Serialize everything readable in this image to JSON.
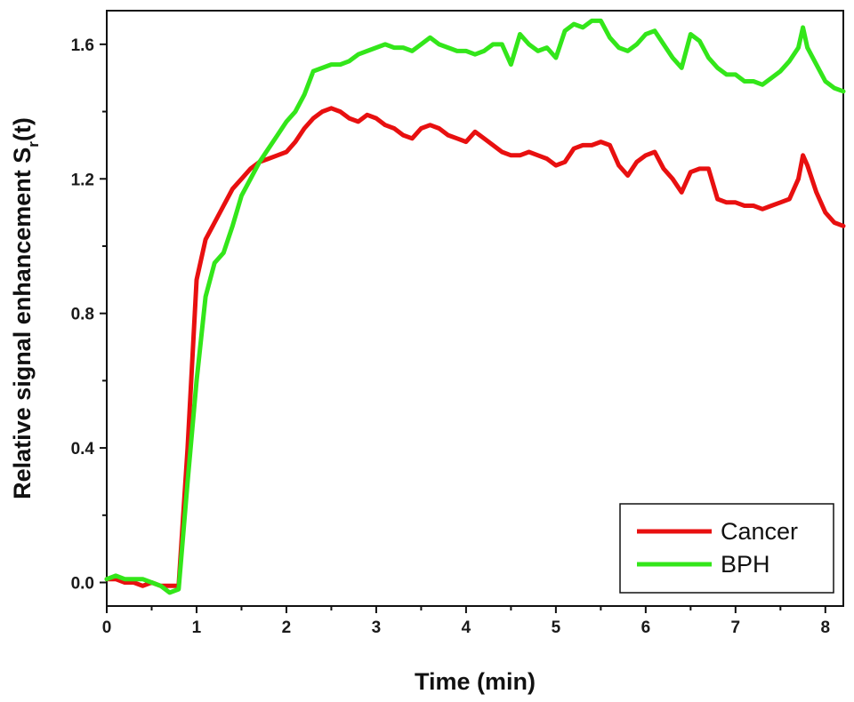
{
  "chart_data": {
    "type": "line",
    "xlabel": "Time (min)",
    "ylabel_main": "Relative signal enhancement S",
    "ylabel_sub": "r",
    "ylabel_tail": "(t)",
    "xlim": [
      0,
      8.2
    ],
    "ylim": [
      -0.07,
      1.7
    ],
    "xticks": [
      0,
      1,
      2,
      3,
      4,
      5,
      6,
      7,
      8
    ],
    "xtick_labels": [
      "0",
      "1",
      "2",
      "3",
      "4",
      "5",
      "6",
      "7",
      "8"
    ],
    "yticks": [
      0.0,
      0.4,
      0.8,
      1.2,
      1.6
    ],
    "ytick_labels": [
      "0.0",
      "0.4",
      "0.8",
      "1.2",
      "1.6"
    ],
    "grid": false,
    "legend_position": "bottom-right",
    "series": [
      {
        "name": "Cancer",
        "color": "#e81010",
        "x": [
          0.0,
          0.1,
          0.2,
          0.3,
          0.4,
          0.5,
          0.6,
          0.7,
          0.8,
          0.9,
          1.0,
          1.1,
          1.2,
          1.3,
          1.4,
          1.5,
          1.6,
          1.7,
          1.8,
          1.9,
          2.0,
          2.1,
          2.2,
          2.3,
          2.4,
          2.5,
          2.6,
          2.7,
          2.8,
          2.9,
          3.0,
          3.1,
          3.2,
          3.3,
          3.4,
          3.5,
          3.6,
          3.7,
          3.8,
          3.9,
          4.0,
          4.1,
          4.2,
          4.3,
          4.4,
          4.5,
          4.6,
          4.7,
          4.8,
          4.9,
          5.0,
          5.1,
          5.2,
          5.3,
          5.4,
          5.5,
          5.6,
          5.7,
          5.8,
          5.9,
          6.0,
          6.1,
          6.2,
          6.3,
          6.4,
          6.5,
          6.6,
          6.7,
          6.8,
          6.9,
          7.0,
          7.1,
          7.2,
          7.3,
          7.4,
          7.5,
          7.6,
          7.7,
          7.75,
          7.8,
          7.9,
          8.0,
          8.1,
          8.2
        ],
        "values": [
          0.01,
          0.01,
          0.0,
          0.0,
          -0.01,
          0.0,
          -0.01,
          -0.01,
          -0.01,
          0.4,
          0.9,
          1.02,
          1.07,
          1.12,
          1.17,
          1.2,
          1.23,
          1.25,
          1.26,
          1.27,
          1.28,
          1.31,
          1.35,
          1.38,
          1.4,
          1.41,
          1.4,
          1.38,
          1.37,
          1.39,
          1.38,
          1.36,
          1.35,
          1.33,
          1.32,
          1.35,
          1.36,
          1.35,
          1.33,
          1.32,
          1.31,
          1.34,
          1.32,
          1.3,
          1.28,
          1.27,
          1.27,
          1.28,
          1.27,
          1.26,
          1.24,
          1.25,
          1.29,
          1.3,
          1.3,
          1.31,
          1.3,
          1.24,
          1.21,
          1.25,
          1.27,
          1.28,
          1.23,
          1.2,
          1.16,
          1.22,
          1.23,
          1.23,
          1.14,
          1.13,
          1.13,
          1.12,
          1.12,
          1.11,
          1.12,
          1.13,
          1.14,
          1.2,
          1.27,
          1.24,
          1.16,
          1.1,
          1.07,
          1.06
        ]
      },
      {
        "name": "BPH",
        "color": "#33e61a",
        "x": [
          0.0,
          0.1,
          0.2,
          0.3,
          0.4,
          0.5,
          0.6,
          0.7,
          0.8,
          0.9,
          1.0,
          1.1,
          1.2,
          1.3,
          1.4,
          1.5,
          1.6,
          1.7,
          1.8,
          1.9,
          2.0,
          2.1,
          2.2,
          2.3,
          2.4,
          2.5,
          2.6,
          2.7,
          2.8,
          2.9,
          3.0,
          3.1,
          3.2,
          3.3,
          3.4,
          3.5,
          3.6,
          3.7,
          3.8,
          3.9,
          4.0,
          4.1,
          4.2,
          4.3,
          4.4,
          4.5,
          4.6,
          4.7,
          4.8,
          4.9,
          5.0,
          5.1,
          5.2,
          5.3,
          5.4,
          5.5,
          5.6,
          5.7,
          5.8,
          5.9,
          6.0,
          6.1,
          6.2,
          6.3,
          6.4,
          6.5,
          6.6,
          6.7,
          6.8,
          6.9,
          7.0,
          7.1,
          7.2,
          7.3,
          7.4,
          7.5,
          7.6,
          7.7,
          7.75,
          7.8,
          7.9,
          8.0,
          8.1,
          8.2
        ],
        "values": [
          0.01,
          0.02,
          0.01,
          0.01,
          0.01,
          0.0,
          -0.01,
          -0.03,
          -0.02,
          0.3,
          0.6,
          0.85,
          0.95,
          0.98,
          1.06,
          1.15,
          1.2,
          1.25,
          1.29,
          1.33,
          1.37,
          1.4,
          1.45,
          1.52,
          1.53,
          1.54,
          1.54,
          1.55,
          1.57,
          1.58,
          1.59,
          1.6,
          1.59,
          1.59,
          1.58,
          1.6,
          1.62,
          1.6,
          1.59,
          1.58,
          1.58,
          1.57,
          1.58,
          1.6,
          1.6,
          1.54,
          1.63,
          1.6,
          1.58,
          1.59,
          1.56,
          1.64,
          1.66,
          1.65,
          1.67,
          1.67,
          1.62,
          1.59,
          1.58,
          1.6,
          1.63,
          1.64,
          1.6,
          1.56,
          1.53,
          1.63,
          1.61,
          1.56,
          1.53,
          1.51,
          1.51,
          1.49,
          1.49,
          1.48,
          1.5,
          1.52,
          1.55,
          1.59,
          1.65,
          1.59,
          1.54,
          1.49,
          1.47,
          1.46
        ]
      }
    ]
  }
}
